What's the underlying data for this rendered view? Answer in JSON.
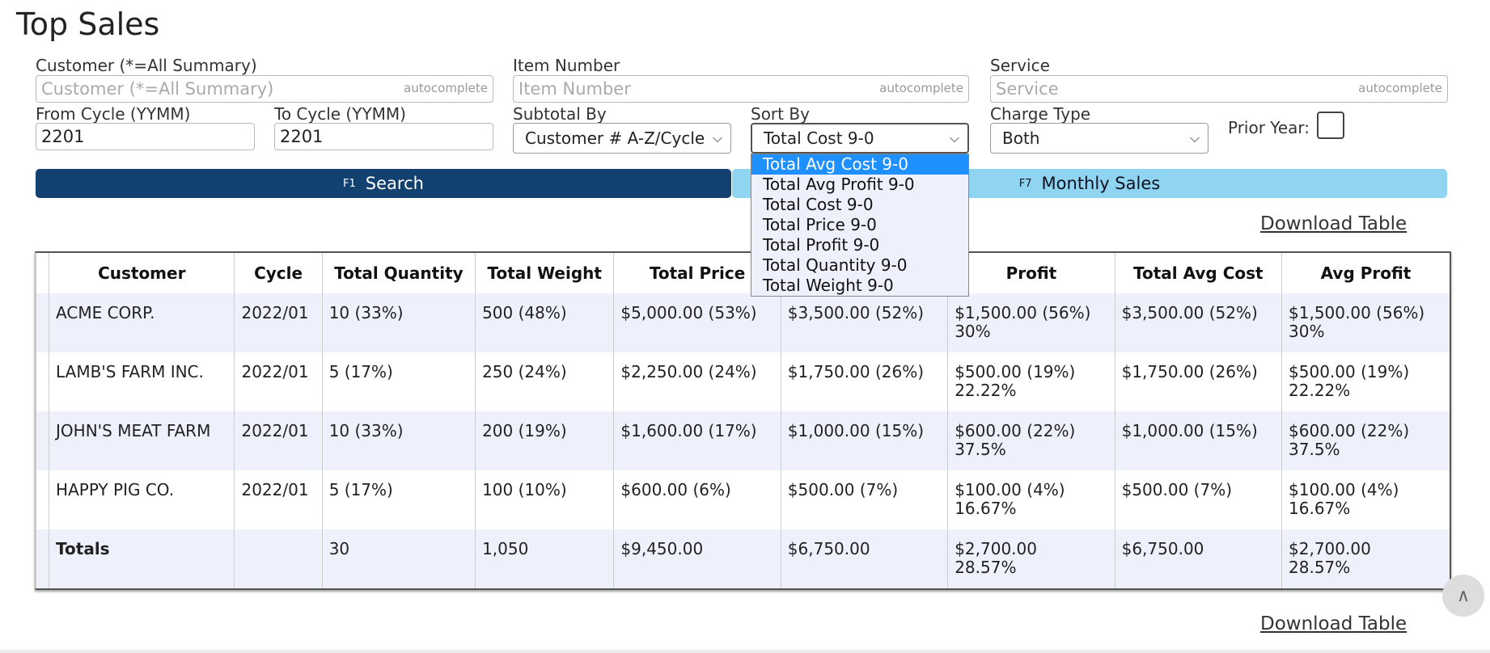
{
  "page": {
    "title": "Top Sales"
  },
  "filters": {
    "customer": {
      "label": "Customer (*=All Summary)",
      "placeholder": "Customer (*=All Summary)",
      "hint": "autocomplete"
    },
    "item_number": {
      "label": "Item Number",
      "placeholder": "Item Number",
      "hint": "autocomplete"
    },
    "service": {
      "label": "Service",
      "placeholder": "Service",
      "hint": "autocomplete"
    },
    "from_cycle": {
      "label": "From Cycle (YYMM)",
      "value": "2201"
    },
    "to_cycle": {
      "label": "To Cycle (YYMM)",
      "value": "2201"
    },
    "subtotal_by": {
      "label": "Subtotal By",
      "value": "Customer # A-Z/Cycle"
    },
    "sort_by": {
      "label": "Sort By",
      "value": "Total Cost 9-0",
      "options": [
        "Total Avg Cost 9-0",
        "Total Avg Profit 9-0",
        "Total Cost 9-0",
        "Total Price 9-0",
        "Total Profit 9-0",
        "Total Quantity 9-0",
        "Total Weight 9-0"
      ],
      "highlighted": "Total Avg Cost 9-0"
    },
    "charge_type": {
      "label": "Charge Type",
      "value": "Both"
    },
    "prior_year": {
      "label": "Prior Year:",
      "checked": false
    }
  },
  "buttons": {
    "search": {
      "key": "F1",
      "label": "Search"
    },
    "monthly": {
      "key": "F7",
      "label": "Monthly Sales"
    },
    "download": "Download Table"
  },
  "table": {
    "headers": [
      "Customer",
      "Cycle",
      "Total Quantity",
      "Total Weight",
      "Total Price",
      "",
      "Profit",
      "Total Avg Cost",
      "Avg Profit"
    ],
    "rows": [
      {
        "customer": "ACME CORP.",
        "cycle": "2022/01",
        "qty": "10 (33%)",
        "weight": "500 (48%)",
        "price": "$5,000.00 (53%)",
        "cost": "$3,500.00 (52%)",
        "profit": "$1,500.00 (56%)",
        "profit_pct": "30%",
        "avg_cost": "$3,500.00 (52%)",
        "avg_profit": "$1,500.00 (56%)",
        "avg_profit_pct": "30%"
      },
      {
        "customer": "LAMB'S FARM INC.",
        "cycle": "2022/01",
        "qty": "5 (17%)",
        "weight": "250 (24%)",
        "price": "$2,250.00 (24%)",
        "cost": "$1,750.00 (26%)",
        "profit": "$500.00 (19%)",
        "profit_pct": "22.22%",
        "avg_cost": "$1,750.00 (26%)",
        "avg_profit": "$500.00 (19%)",
        "avg_profit_pct": "22.22%"
      },
      {
        "customer": "JOHN'S MEAT FARM",
        "cycle": "2022/01",
        "qty": "10 (33%)",
        "weight": "200 (19%)",
        "price": "$1,600.00 (17%)",
        "cost": "$1,000.00 (15%)",
        "profit": "$600.00 (22%)",
        "profit_pct": "37.5%",
        "avg_cost": "$1,000.00 (15%)",
        "avg_profit": "$600.00 (22%)",
        "avg_profit_pct": "37.5%"
      },
      {
        "customer": "HAPPY PIG CO.",
        "cycle": "2022/01",
        "qty": "5 (17%)",
        "weight": "100 (10%)",
        "price": "$600.00 (6%)",
        "cost": "$500.00 (7%)",
        "profit": "$100.00 (4%)",
        "profit_pct": "16.67%",
        "avg_cost": "$500.00 (7%)",
        "avg_profit": "$100.00 (4%)",
        "avg_profit_pct": "16.67%"
      }
    ],
    "totals": {
      "label": "Totals",
      "cycle": "",
      "qty": "30",
      "weight": "1,050",
      "price": "$9,450.00",
      "cost": "$6,750.00",
      "profit": "$2,700.00",
      "profit_pct": "28.57%",
      "avg_cost": "$6,750.00",
      "avg_profit": "$2,700.00",
      "avg_profit_pct": "28.57%"
    }
  },
  "icons": {
    "scroll_top": "chevron-up-icon",
    "select_arrow": "chevron-down-icon"
  }
}
